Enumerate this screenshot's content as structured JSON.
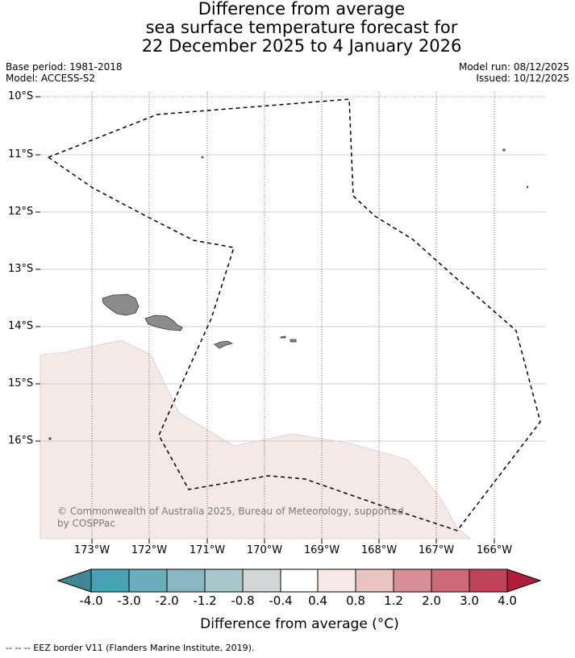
{
  "title": {
    "line1": "Difference from average",
    "line2": "sea surface temperature forecast for",
    "line3": "22 December 2025 to 4 January 2026"
  },
  "meta": {
    "base_period": "Base period: 1981-2018",
    "model": "Model: ACCESS-S2",
    "model_run": "Model run: 08/12/2025",
    "issued": "Issued: 10/12/2025"
  },
  "map": {
    "latitude_labels": [
      "10°S",
      "11°S",
      "12°S",
      "13°S",
      "14°S",
      "15°S",
      "16°S"
    ],
    "longitude_labels": [
      "173°W",
      "172°W",
      "171°W",
      "170°W",
      "169°W",
      "168°W",
      "167°W",
      "166°W"
    ],
    "anomaly_fill_color": "#f5e9e7",
    "land_color": "#8c8c8c",
    "eez_line_color": "#000000"
  },
  "copyright": {
    "line1": "© Commonwealth of Australia 2025, Bureau of Meteorology, supported",
    "line2": "by COSPPac"
  },
  "colorbar": {
    "ticks": [
      "-4.0",
      "-3.0",
      "-2.0",
      "-1.2",
      "-0.8",
      "-0.4",
      "0.4",
      "0.8",
      "1.2",
      "2.0",
      "3.0",
      "4.0"
    ],
    "colors": [
      "#3e8896",
      "#47a3b4",
      "#6aaebe",
      "#8bb7c2",
      "#a7c6cb",
      "#d3d6d6",
      "#ffffff",
      "#f5e9e7",
      "#e9c4c0",
      "#d78e96",
      "#cd6878",
      "#c04458",
      "#b21c3c"
    ],
    "label": "Difference from average (°C)"
  },
  "footnote": "-- -- -- EEZ border V11 (Flanders Marine Institute, 2019)."
}
